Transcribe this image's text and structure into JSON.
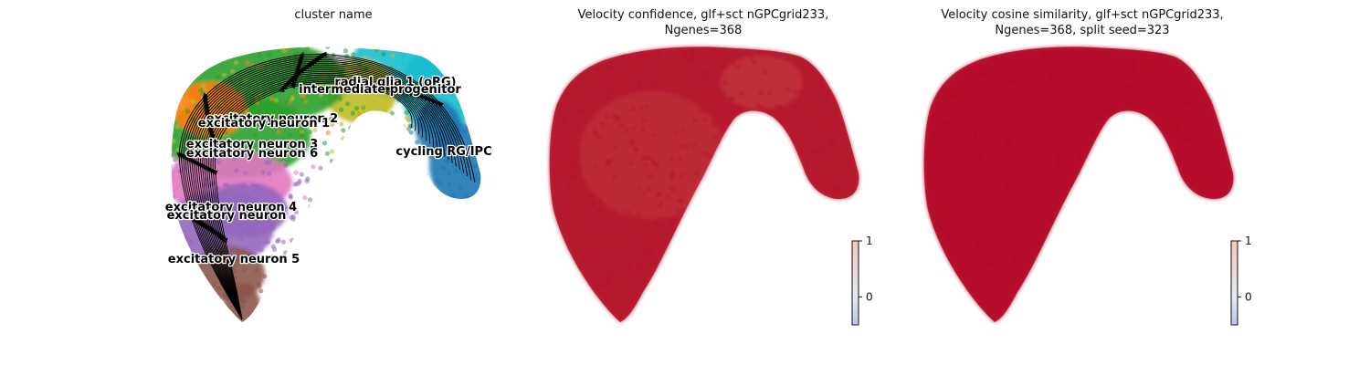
{
  "chart_data": [
    {
      "type": "scatter",
      "title": "cluster name",
      "overlay": "velocity streamlines",
      "clusters": [
        {
          "name": "radial glia 1 (oRG)",
          "color": "#17becf"
        },
        {
          "name": "intermediate progenitor",
          "color": "#bcbd22"
        },
        {
          "name": "excitatory neuron 2",
          "color": "#ff7f0e"
        },
        {
          "name": "excitatory neuron 1",
          "color": "#2ca02c"
        },
        {
          "name": "excitatory neuron 3",
          "color": "#d62728"
        },
        {
          "name": "excitatory neuron 6",
          "color": "#e377c2"
        },
        {
          "name": "cycling RG/IPC",
          "color": "#1f77b4"
        },
        {
          "name": "excitatory neuron 4",
          "color": "#9467bd"
        },
        {
          "name": "excitatory neuron",
          "color": "#aec7e8"
        },
        {
          "name": "excitatory neuron 5",
          "color": "#8c564b"
        }
      ]
    },
    {
      "type": "scatter",
      "title": "Velocity confidence, glf+sct nGPCgrid233, Ngenes=368",
      "title_lines": [
        "Velocity confidence, glf+sct nGPCgrid233,",
        "Ngenes=368"
      ],
      "colorbar": {
        "ticks": [
          "1",
          "0"
        ],
        "range": [
          -0.5,
          1
        ]
      },
      "point_color": "#b5152b"
    },
    {
      "type": "scatter",
      "title": "Velocity cosine similarity, glf+sct nGPCgrid233, Ngenes=368, split seed=323",
      "title_lines": [
        "Velocity cosine similarity, glf+sct nGPCgrid233,",
        "Ngenes=368, split seed=323"
      ],
      "colorbar": {
        "ticks": [
          "1",
          "0"
        ],
        "range": [
          -0.5,
          1
        ]
      },
      "point_color": "#b40a28"
    }
  ]
}
